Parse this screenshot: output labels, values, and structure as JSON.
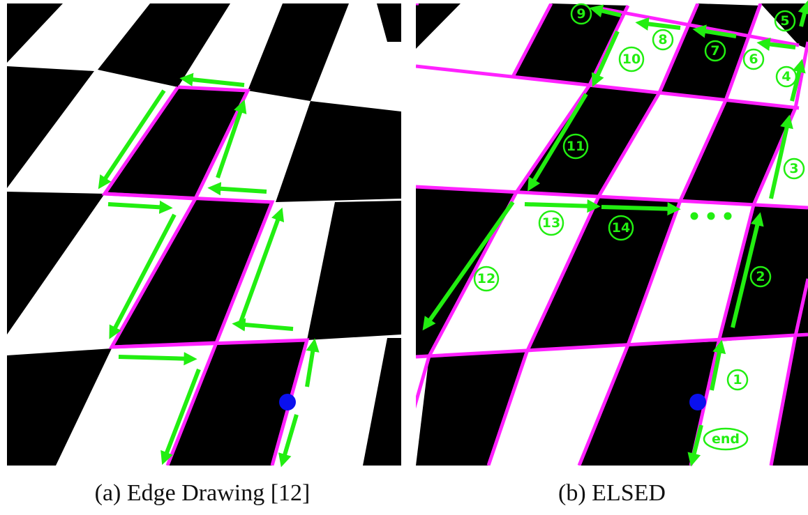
{
  "panels": [
    {
      "caption": "(a) Edge Drawing [12]"
    },
    {
      "caption": "(b) ELSED",
      "labels": [
        "1",
        "2",
        "3",
        "4",
        "5",
        "6",
        "7",
        "8",
        "9",
        "10",
        "11",
        "12",
        "13",
        "14",
        "end"
      ]
    }
  ]
}
